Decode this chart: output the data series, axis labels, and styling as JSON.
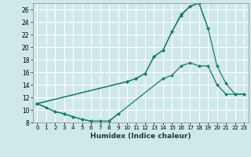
{
  "xlabel": "Humidex (Indice chaleur)",
  "bg_color": "#cfe8e8",
  "grid_color": "#ffffff",
  "line_color": "#1a7a6e",
  "xlim": [
    -0.5,
    23.5
  ],
  "ylim": [
    8,
    27
  ],
  "xticks": [
    0,
    1,
    2,
    3,
    4,
    5,
    6,
    7,
    8,
    9,
    10,
    11,
    12,
    13,
    14,
    15,
    16,
    17,
    18,
    19,
    20,
    21,
    22,
    23
  ],
  "yticks": [
    8,
    10,
    12,
    14,
    16,
    18,
    20,
    22,
    24,
    26
  ],
  "series": [
    {
      "x": [
        0,
        1,
        2,
        3,
        4,
        5,
        6,
        7,
        8,
        9
      ],
      "y": [
        11.0,
        10.4,
        9.7,
        9.4,
        8.9,
        8.5,
        8.2,
        8.2,
        8.2,
        9.4
      ]
    },
    {
      "x": [
        0,
        2,
        3,
        4,
        5,
        6,
        7,
        8,
        14,
        15,
        16,
        17,
        18,
        19,
        20,
        21,
        22,
        23
      ],
      "y": [
        11.0,
        9.7,
        9.4,
        8.9,
        8.5,
        8.2,
        8.2,
        8.2,
        15.0,
        15.5,
        17.0,
        17.5,
        17.0,
        17.0,
        14.0,
        12.5,
        12.5,
        12.5
      ]
    },
    {
      "x": [
        0,
        10,
        11,
        12,
        13,
        14,
        15,
        16,
        17,
        18,
        19,
        20,
        21,
        22,
        23
      ],
      "y": [
        11.0,
        14.5,
        15.0,
        15.8,
        18.5,
        19.5,
        22.5,
        25.0,
        26.5,
        27.0,
        23.0,
        17.0,
        14.2,
        12.5,
        12.5
      ]
    },
    {
      "x": [
        0,
        10,
        11,
        12,
        13,
        14,
        15,
        16,
        17,
        18,
        19
      ],
      "y": [
        11.0,
        14.5,
        15.0,
        15.8,
        18.5,
        19.5,
        22.5,
        25.2,
        26.5,
        27.0,
        23.0
      ]
    }
  ]
}
